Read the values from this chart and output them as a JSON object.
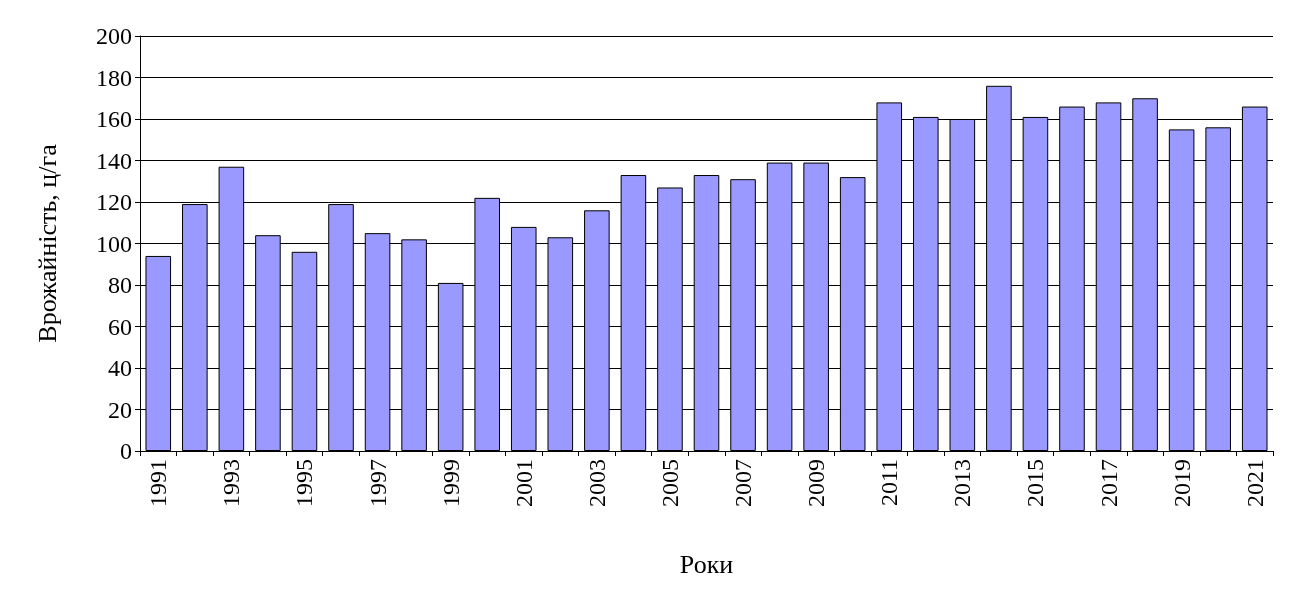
{
  "chart_data": {
    "type": "bar",
    "xlabel": "Роки",
    "ylabel": "Врожайність, ц/га",
    "categories": [
      "1991",
      null,
      "1993",
      null,
      "1995",
      null,
      "1997",
      null,
      "1999",
      null,
      "2001",
      null,
      "2003",
      null,
      "2005",
      null,
      "2007",
      null,
      "2009",
      null,
      "2011",
      null,
      "2013",
      null,
      "2015",
      null,
      "2017",
      null,
      "2019",
      null,
      "2021"
    ],
    "values": [
      94,
      119,
      137,
      104,
      96,
      119,
      105,
      102,
      81,
      122,
      108,
      103,
      116,
      133,
      127,
      133,
      131,
      139,
      139,
      132,
      168,
      161,
      160,
      176,
      161,
      166,
      168,
      170,
      155,
      156,
      166
    ],
    "color": "#9999ff",
    "ylim": [
      0,
      200
    ],
    "yticks": [
      0,
      20,
      40,
      60,
      80,
      100,
      120,
      140,
      160,
      180,
      200
    ],
    "grid": "y"
  }
}
